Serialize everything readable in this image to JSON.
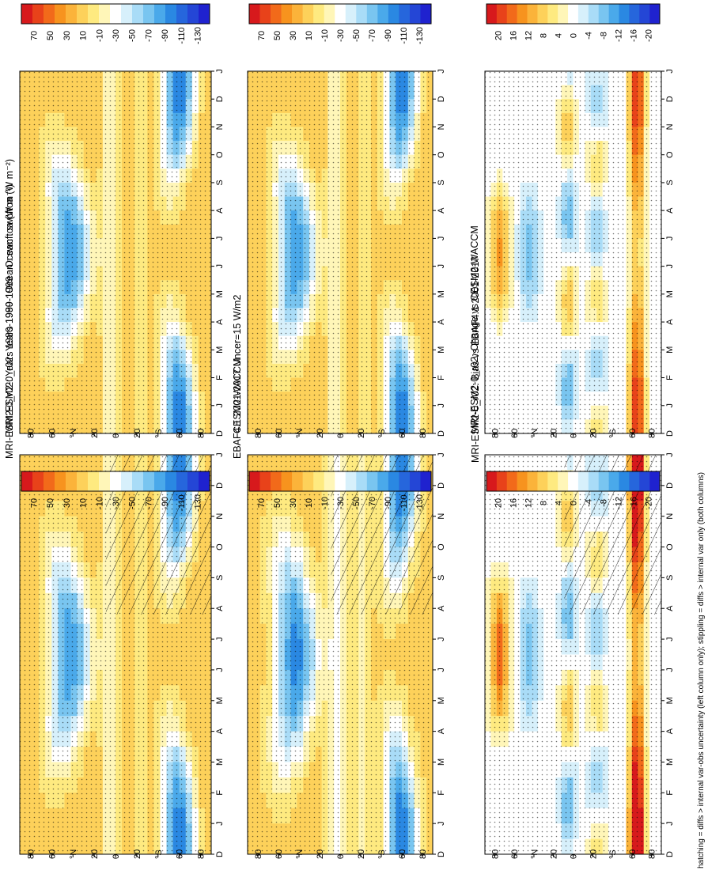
{
  "figure": {
    "caption": "hatching = diffs > internal var-obs uncertainty (left column only); stippling = diffs > internal var only (both columns)"
  },
  "colors": {
    "diverging": [
      "#d7191c",
      "#e8421a",
      "#f26a1a",
      "#f7931e",
      "#fbb33a",
      "#fdd15a",
      "#feea80",
      "#fff6b8",
      "#ffffff",
      "#d7f0fb",
      "#a9dcf7",
      "#79c5f0",
      "#4aa9ea",
      "#2a88e2",
      "#2666dc",
      "#2446d6",
      "#1f22cf"
    ],
    "stipple": "#000000"
  },
  "chart_data": [
    {
      "id": "bias-model",
      "type": "heatmap",
      "title": "MRI-ESM2-0_r02: Years 1980-1999 : Ocean : swcftoa (W m⁻²)",
      "x_ticks": [
        "D",
        "J",
        "F",
        "M",
        "A",
        "M",
        "J",
        "J",
        "A",
        "S",
        "O",
        "N",
        "D",
        "J"
      ],
      "y_ticks": [
        "80",
        "60",
        "°N",
        "20",
        "0",
        "20",
        "°S",
        "60",
        "80"
      ],
      "ylim": [
        -90,
        90
      ],
      "colorbar_ticks": [
        "70",
        "50",
        "30",
        "10",
        "-10",
        "-30",
        "-50",
        "-70",
        "-90",
        "-110",
        "-130"
      ],
      "vmin": -140,
      "vmax": 80,
      "stippling": true,
      "hatching": true
    },
    {
      "id": "obs",
      "type": "heatmap",
      "title": "EBAF4.1 2001-2017 Uncer=15 W/m2",
      "x_ticks": [
        "D",
        "J",
        "F",
        "M",
        "A",
        "M",
        "J",
        "J",
        "A",
        "S",
        "O",
        "N",
        "D",
        "J"
      ],
      "y_ticks": [
        "80",
        "60",
        "°N",
        "20",
        "0",
        "20",
        "°S",
        "60",
        "80"
      ],
      "ylim": [
        -90,
        90
      ],
      "colorbar_ticks": [
        "70",
        "50",
        "30",
        "10",
        "-10",
        "-30",
        "-50",
        "-70",
        "-90",
        "-110",
        "-130"
      ],
      "vmin": -140,
      "vmax": 80,
      "stippling": true,
      "hatching": true
    },
    {
      "id": "bias-diff",
      "type": "heatmap",
      "title": "MRI-ESM2-0_r02: Bias vs EBAF4.1 2001-2017",
      "x_ticks": [
        "D",
        "J",
        "F",
        "M",
        "A",
        "M",
        "J",
        "J",
        "A",
        "S",
        "O",
        "N",
        "D",
        "J"
      ],
      "y_ticks": [
        "80",
        "60",
        "°N",
        "20",
        "0",
        "20",
        "°S",
        "60",
        "80"
      ],
      "ylim": [
        -90,
        90
      ],
      "colorbar_ticks": [
        "20",
        "16",
        "12",
        "8",
        "4",
        "0",
        "-4",
        "-8",
        "-12",
        "-16",
        "-20"
      ],
      "vmin": -22,
      "vmax": 22,
      "stippling": true,
      "hatching": true
    },
    {
      "id": "change-model",
      "type": "heatmap",
      "title": "MRI-ESM2-0_r02: Years 1980-1999 : Ocean : swcftoa (W m⁻²)",
      "x_ticks": [
        "D",
        "J",
        "F",
        "M",
        "A",
        "M",
        "J",
        "J",
        "A",
        "S",
        "O",
        "N",
        "D",
        "J"
      ],
      "y_ticks": [
        "80",
        "60",
        "°N",
        "20",
        "0",
        "20",
        "°S",
        "60",
        "80"
      ],
      "ylim": [
        -90,
        90
      ],
      "colorbar_ticks": [
        "70",
        "50",
        "30",
        "10",
        "-10",
        "-30",
        "-50",
        "-70",
        "-90",
        "-110",
        "-130"
      ],
      "vmin": -140,
      "vmax": 80,
      "stippling": true,
      "hatching": false
    },
    {
      "id": "ref-model",
      "type": "heatmap",
      "title": "CESM2-WACCM",
      "x_ticks": [
        "D",
        "J",
        "F",
        "M",
        "A",
        "M",
        "J",
        "J",
        "A",
        "S",
        "O",
        "N",
        "D",
        "J"
      ],
      "y_ticks": [
        "80",
        "60",
        "°N",
        "20",
        "0",
        "20",
        "°S",
        "60",
        "80"
      ],
      "ylim": [
        -90,
        90
      ],
      "colorbar_ticks": [
        "70",
        "50",
        "30",
        "10",
        "-10",
        "-30",
        "-50",
        "-70",
        "-90",
        "-110",
        "-130"
      ],
      "vmin": -140,
      "vmax": 80,
      "stippling": true,
      "hatching": false
    },
    {
      "id": "change-diff",
      "type": "heatmap",
      "title": "MRI-ESM2-0_r02: Change vs CESM2-WACCM",
      "x_ticks": [
        "D",
        "J",
        "F",
        "M",
        "A",
        "M",
        "J",
        "J",
        "A",
        "S",
        "O",
        "N",
        "D",
        "J"
      ],
      "y_ticks": [
        "80",
        "60",
        "°N",
        "20",
        "0",
        "20",
        "°S",
        "60",
        "80"
      ],
      "ylim": [
        -90,
        90
      ],
      "colorbar_ticks": [
        "20",
        "16",
        "12",
        "8",
        "4",
        "0",
        "-4",
        "-8",
        "-12",
        "-16",
        "-20"
      ],
      "vmin": -22,
      "vmax": 22,
      "stippling": true,
      "hatching": false
    }
  ]
}
